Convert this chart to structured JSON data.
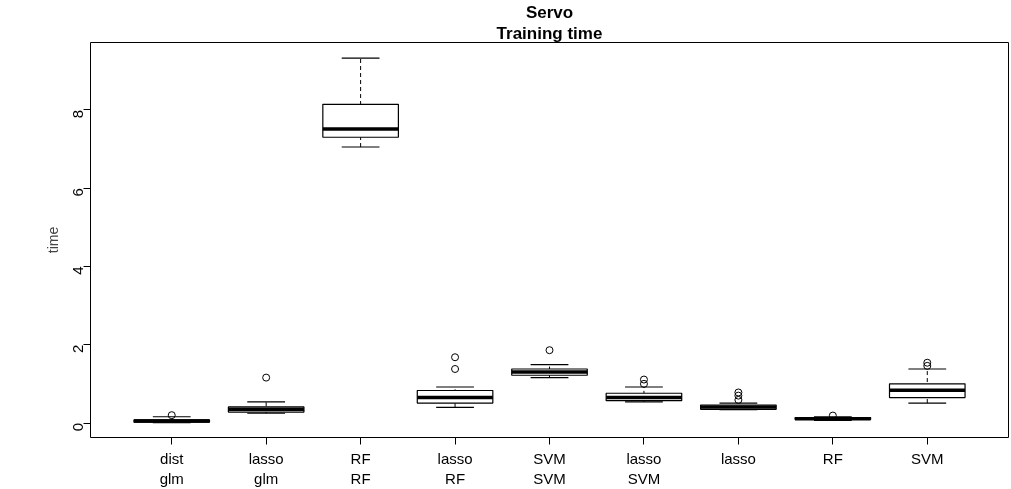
{
  "chart_data": {
    "type": "box",
    "title": "Servo",
    "subtitle": "Training time",
    "ylabel": "time",
    "categories": [
      "dist\nglm",
      "lasso\nglm",
      "RF\nRF",
      "lasso\nRF",
      "SVM\nSVM",
      "lasso\nSVM",
      "lasso",
      "RF",
      "SVM"
    ],
    "boxes": [
      {
        "low": 0.01,
        "q1": 0.02,
        "median": 0.05,
        "q3": 0.08,
        "high": 0.16,
        "outliers": [
          0.2
        ]
      },
      {
        "low": 0.25,
        "q1": 0.28,
        "median": 0.35,
        "q3": 0.41,
        "high": 0.54,
        "outliers": [
          1.16
        ]
      },
      {
        "low": 7.05,
        "q1": 7.3,
        "median": 7.51,
        "q3": 8.14,
        "high": 9.32
      },
      {
        "low": 0.4,
        "q1": 0.51,
        "median": 0.65,
        "q3": 0.83,
        "high": 0.92,
        "outliers": [
          1.38,
          1.68
        ]
      },
      {
        "low": 1.16,
        "q1": 1.22,
        "median": 1.3,
        "q3": 1.38,
        "high": 1.49,
        "outliers": [
          1.86
        ]
      },
      {
        "low": 0.54,
        "q1": 0.57,
        "median": 0.65,
        "q3": 0.76,
        "high": 0.92,
        "outliers": [
          1.0,
          1.11
        ]
      },
      {
        "low": 0.34,
        "q1": 0.35,
        "median": 0.41,
        "q3": 0.46,
        "high": 0.51,
        "outliers": [
          0.59,
          0.7,
          0.78
        ]
      },
      {
        "low": 0.07,
        "q1": 0.09,
        "median": 0.11,
        "q3": 0.14,
        "high": 0.16,
        "outliers": [
          0.19
        ]
      },
      {
        "low": 0.51,
        "q1": 0.65,
        "median": 0.84,
        "q3": 1.0,
        "high": 1.38,
        "outliers": [
          1.46,
          1.54
        ]
      }
    ],
    "ylim": [
      -0.37,
      9.72
    ],
    "yticks": [
      0,
      2,
      4,
      6,
      8
    ],
    "grid": false
  }
}
